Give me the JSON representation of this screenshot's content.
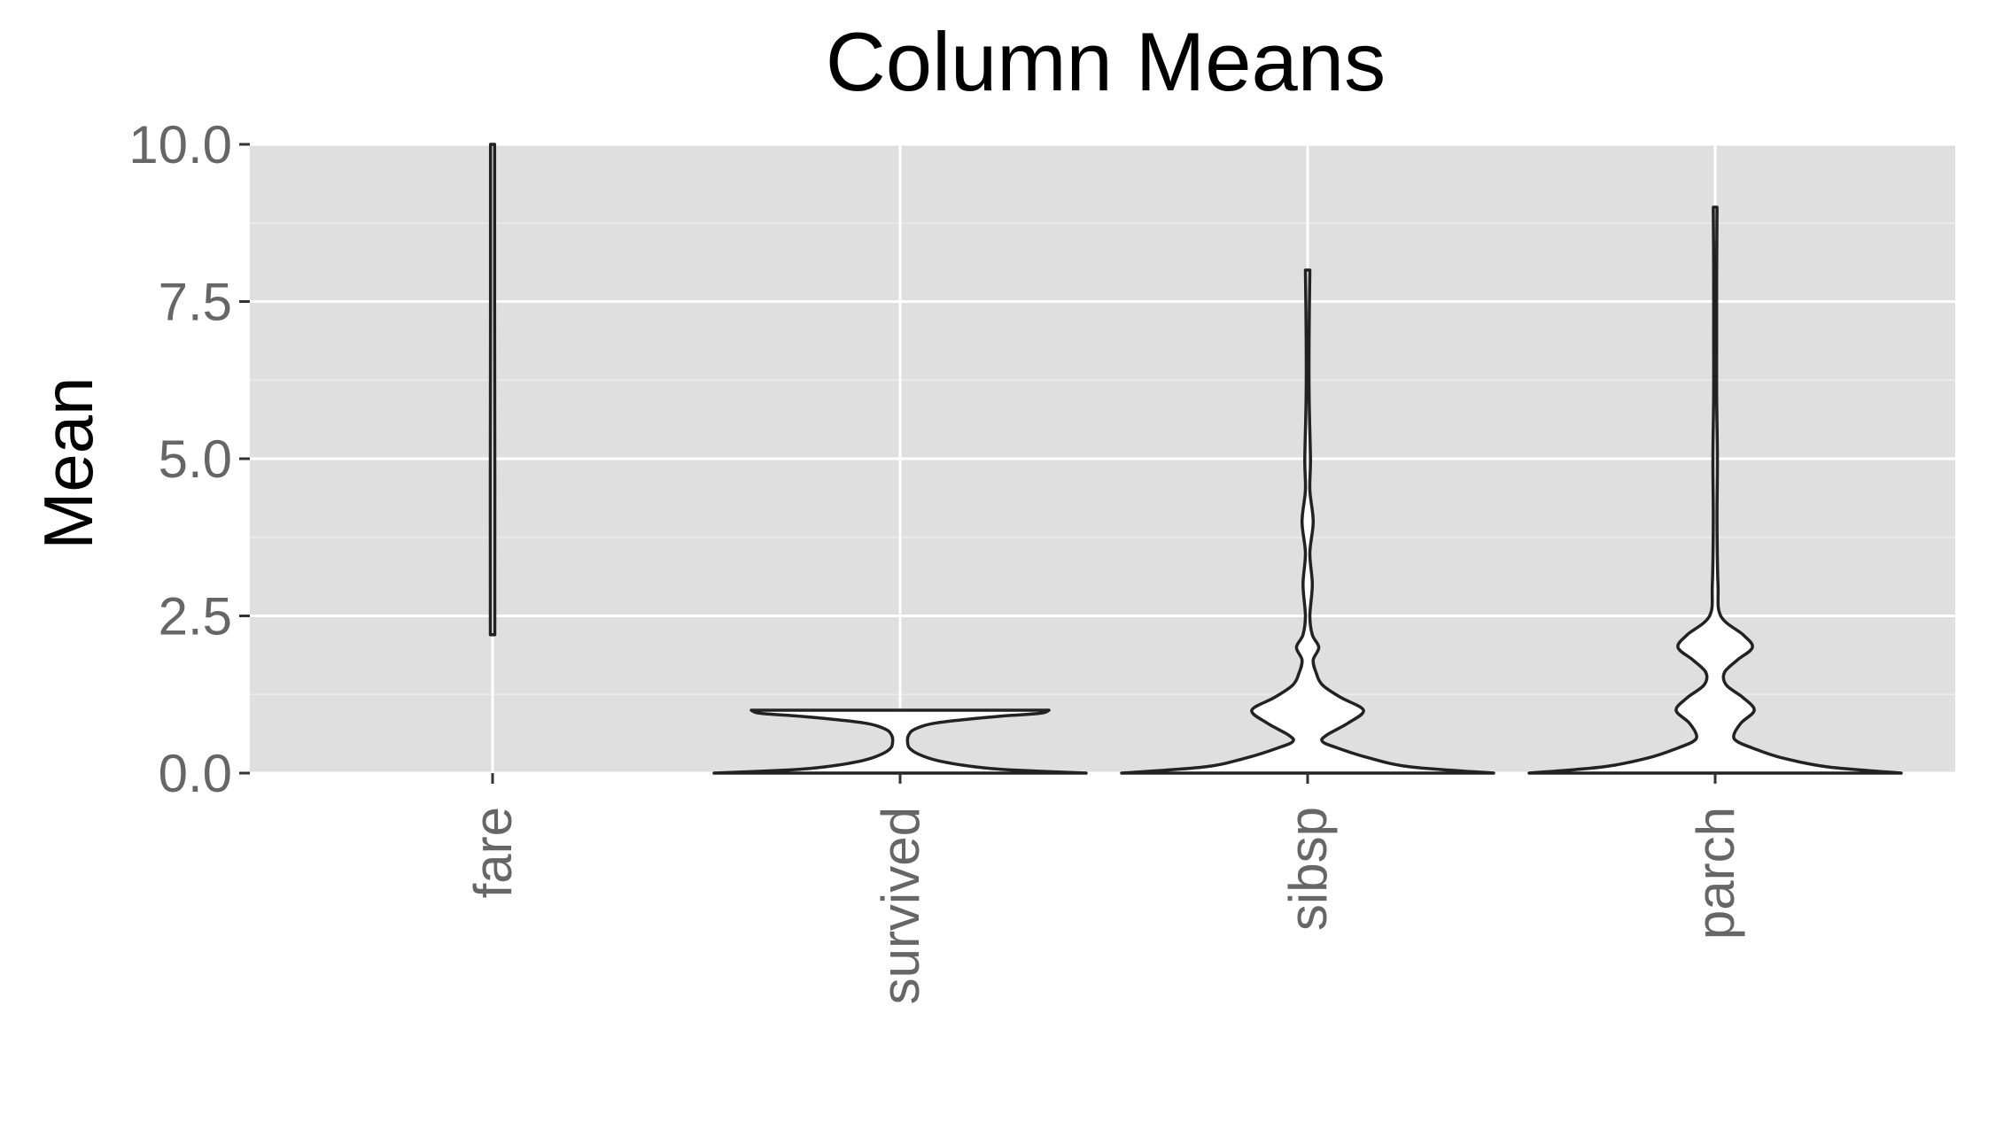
{
  "colors": {
    "panel_background": "#dfdfdf",
    "grid_major": "#ffffff",
    "grid_minor": "#ececec",
    "violin_fill": "#ffffff",
    "violin_stroke": "#222222",
    "tick_label": "#666666",
    "title": "#000000"
  },
  "chart_data": {
    "type": "violin",
    "title": "Column Means",
    "xlabel": "",
    "ylabel": "Mean",
    "ylim": [
      0,
      10
    ],
    "y_ticks": [
      0,
      2.5,
      5,
      7.5,
      10
    ],
    "y_tick_labels": [
      "0.0",
      "2.5",
      "5.0",
      "7.5",
      "10.0"
    ],
    "x_tick_label_rotation": "vertical",
    "grid": true,
    "legend": "none",
    "categories": [
      "fare",
      "survived",
      "sibsp",
      "parch"
    ],
    "violins": [
      {
        "category": "fare",
        "y_range_shown": [
          2.2,
          10
        ],
        "clipped_at_top": true,
        "density_profile": [
          [
            2.2,
            0.012
          ],
          [
            3.0,
            0.012
          ],
          [
            5.0,
            0.012
          ],
          [
            7.5,
            0.011
          ],
          [
            10.0,
            0.011
          ]
        ]
      },
      {
        "category": "survived",
        "y_range_shown": [
          0,
          1
        ],
        "clipped_at_top": false,
        "density_profile": [
          [
            0.0,
            1.0
          ],
          [
            0.05,
            0.6
          ],
          [
            0.1,
            0.4
          ],
          [
            0.2,
            0.2
          ],
          [
            0.3,
            0.1
          ],
          [
            0.4,
            0.05
          ],
          [
            0.5,
            0.04
          ],
          [
            0.6,
            0.045
          ],
          [
            0.7,
            0.08
          ],
          [
            0.8,
            0.2
          ],
          [
            0.9,
            0.52
          ],
          [
            0.95,
            0.75
          ],
          [
            1.0,
            0.8
          ]
        ]
      },
      {
        "category": "sibsp",
        "y_range_shown": [
          0,
          8
        ],
        "clipped_at_top": false,
        "density_profile": [
          [
            0.0,
            1.0
          ],
          [
            0.1,
            0.55
          ],
          [
            0.25,
            0.32
          ],
          [
            0.4,
            0.16
          ],
          [
            0.5,
            0.08
          ],
          [
            0.6,
            0.1
          ],
          [
            0.8,
            0.22
          ],
          [
            1.0,
            0.3
          ],
          [
            1.2,
            0.18
          ],
          [
            1.4,
            0.08
          ],
          [
            1.6,
            0.045
          ],
          [
            1.8,
            0.03
          ],
          [
            2.0,
            0.06
          ],
          [
            2.2,
            0.025
          ],
          [
            2.5,
            0.012
          ],
          [
            3.0,
            0.025
          ],
          [
            3.5,
            0.012
          ],
          [
            4.0,
            0.03
          ],
          [
            4.5,
            0.012
          ],
          [
            5.0,
            0.015
          ],
          [
            6.0,
            0.008
          ],
          [
            7.0,
            0.008
          ],
          [
            8.0,
            0.012
          ]
        ]
      },
      {
        "category": "parch",
        "y_range_shown": [
          0,
          9
        ],
        "clipped_at_top": false,
        "density_profile": [
          [
            0.0,
            1.0
          ],
          [
            0.1,
            0.6
          ],
          [
            0.25,
            0.35
          ],
          [
            0.4,
            0.2
          ],
          [
            0.5,
            0.12
          ],
          [
            0.6,
            0.1
          ],
          [
            0.8,
            0.14
          ],
          [
            1.0,
            0.21
          ],
          [
            1.2,
            0.15
          ],
          [
            1.4,
            0.06
          ],
          [
            1.6,
            0.05
          ],
          [
            1.8,
            0.12
          ],
          [
            2.0,
            0.2
          ],
          [
            2.2,
            0.15
          ],
          [
            2.5,
            0.03
          ],
          [
            3.0,
            0.015
          ],
          [
            4.0,
            0.01
          ],
          [
            5.0,
            0.012
          ],
          [
            6.0,
            0.008
          ],
          [
            7.0,
            0.008
          ],
          [
            8.0,
            0.008
          ],
          [
            9.0,
            0.01
          ]
        ]
      }
    ]
  }
}
